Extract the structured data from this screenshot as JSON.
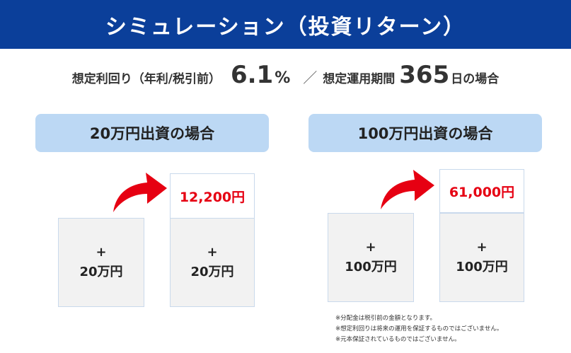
{
  "header": {
    "title": "シミュレーション（投資リターン）"
  },
  "rate_line": {
    "yield_label": "想定利回り（年利/税引前）",
    "yield_value": "6.1",
    "yield_unit": "%",
    "separator": "／",
    "period_label": "想定運用期間",
    "period_value": "365",
    "period_suffix": "日の場合"
  },
  "cases": [
    {
      "label": "20万円出資の場合",
      "before": {
        "plus": "+",
        "amount": "20万円"
      },
      "after": {
        "return": "12,200円",
        "plus": "+",
        "amount": "20万円"
      }
    },
    {
      "label": "100万円出資の場合",
      "before": {
        "plus": "+",
        "amount": "100万円"
      },
      "after": {
        "return": "61,000円",
        "plus": "+",
        "amount": "100万円"
      }
    }
  ],
  "notes": [
    "※分配金は税引前の金額となります。",
    "※想定利回りは将来の運用を保証するものではございません。",
    "※元本保証されているものではございません。"
  ],
  "colors": {
    "header_bg": "#0b3f9a",
    "label_bg": "#bcd8f4",
    "accent_red": "#e60012"
  }
}
